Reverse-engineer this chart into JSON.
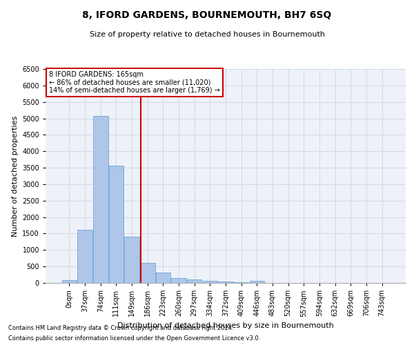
{
  "title": "8, IFORD GARDENS, BOURNEMOUTH, BH7 6SQ",
  "subtitle": "Size of property relative to detached houses in Bournemouth",
  "xlabel": "Distribution of detached houses by size in Bournemouth",
  "ylabel": "Number of detached properties",
  "footnote1": "Contains HM Land Registry data © Crown copyright and database right 2024.",
  "footnote2": "Contains public sector information licensed under the Open Government Licence v3.0.",
  "bar_labels": [
    "0sqm",
    "37sqm",
    "74sqm",
    "111sqm",
    "149sqm",
    "186sqm",
    "223sqm",
    "260sqm",
    "297sqm",
    "334sqm",
    "372sqm",
    "409sqm",
    "446sqm",
    "483sqm",
    "520sqm",
    "557sqm",
    "594sqm",
    "632sqm",
    "669sqm",
    "706sqm",
    "743sqm"
  ],
  "bar_values": [
    75,
    1620,
    5070,
    3570,
    1400,
    600,
    310,
    155,
    95,
    60,
    45,
    25,
    60,
    0,
    0,
    0,
    0,
    0,
    0,
    0,
    0
  ],
  "bar_color": "#aec6e8",
  "bar_edgecolor": "#5b9bd5",
  "grid_color": "#d0d8e8",
  "background_color": "#eef2f8",
  "annotation_text": "8 IFORD GARDENS: 165sqm\n← 86% of detached houses are smaller (11,020)\n14% of semi-detached houses are larger (1,769) →",
  "vline_position": 4.55,
  "vline_color": "#cc0000",
  "annotation_box_edgecolor": "#cc0000",
  "ylim": [
    0,
    6500
  ],
  "yticks": [
    0,
    500,
    1000,
    1500,
    2000,
    2500,
    3000,
    3500,
    4000,
    4500,
    5000,
    5500,
    6000,
    6500
  ],
  "title_fontsize": 10,
  "subtitle_fontsize": 8,
  "ylabel_fontsize": 8,
  "xlabel_fontsize": 8,
  "tick_fontsize": 7,
  "footnote_fontsize": 6,
  "annotation_fontsize": 7
}
